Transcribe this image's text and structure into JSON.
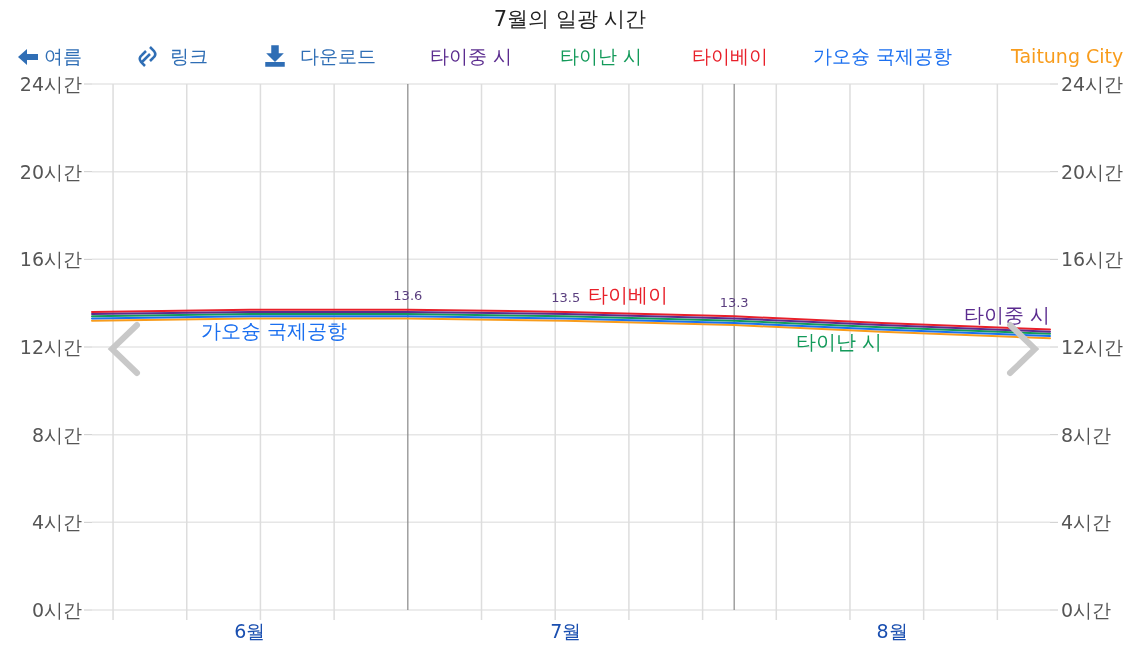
{
  "chart_data": {
    "type": "line",
    "title": "7월의 일광 시간",
    "x": [
      "--06-01",
      "--06-16",
      "--07-01",
      "--07-16",
      "--08-01",
      "--08-15",
      "--08-31"
    ],
    "xlim": [
      "--06-01",
      "--08-31"
    ],
    "xticks": [
      {
        "value": "--06-03",
        "label": null
      },
      {
        "value": "--06-10",
        "label": null
      },
      {
        "value": "--06-16",
        "label": "6월"
      },
      {
        "value": "--06-17",
        "label": null
      },
      {
        "value": "--06-24",
        "label": null
      },
      {
        "value": "--07-08",
        "label": null
      },
      {
        "value": "--07-15",
        "label": null
      },
      {
        "value": "--07-16",
        "label": "7월"
      },
      {
        "value": "--07-22",
        "label": null
      },
      {
        "value": "--07-29",
        "label": null
      },
      {
        "value": "--08-05",
        "label": null
      },
      {
        "value": "--08-12",
        "label": null
      },
      {
        "value": "--08-16",
        "label": "8월"
      },
      {
        "value": "--08-19",
        "label": null
      },
      {
        "value": "--08-26",
        "label": null
      }
    ],
    "ylim": [
      0,
      24
    ],
    "yticks": [
      {
        "value": 0,
        "label": "0시간"
      },
      {
        "value": 4,
        "label": "4시간"
      },
      {
        "value": 8,
        "label": "8시간"
      },
      {
        "value": 12,
        "label": "12시간"
      },
      {
        "value": 16,
        "label": "16시간"
      },
      {
        "value": 20,
        "label": "20시간"
      },
      {
        "value": 24,
        "label": "24시간"
      }
    ],
    "y2lim": [
      0,
      24
    ],
    "y2ticks": [
      {
        "value": 0,
        "label": "0시간"
      },
      {
        "value": 4,
        "label": "4시간"
      },
      {
        "value": 8,
        "label": "8시간"
      },
      {
        "value": 12,
        "label": "12시간"
      },
      {
        "value": 16,
        "label": "16시간"
      },
      {
        "value": 20,
        "label": "20시간"
      },
      {
        "value": 24,
        "label": "24시간"
      }
    ],
    "series": [
      {
        "name": "타이중 시",
        "color": "#5b2c8f",
        "values": [
          13.5,
          13.6,
          13.6,
          13.5,
          13.3,
          13.0,
          12.7
        ]
      },
      {
        "name": "타이난 시",
        "color": "#139a5a",
        "values": [
          13.4,
          13.5,
          13.5,
          13.4,
          13.2,
          12.9,
          12.6
        ]
      },
      {
        "name": "타이베이",
        "color": "#e8202a",
        "values": [
          13.6,
          13.7,
          13.7,
          13.6,
          13.4,
          13.1,
          12.8
        ]
      },
      {
        "name": "가오슝 국제공항",
        "color": "#1a6ff0",
        "values": [
          13.3,
          13.4,
          13.4,
          13.3,
          13.1,
          12.8,
          12.5
        ]
      },
      {
        "name": "Taitung City",
        "color": "#f89c1c",
        "values": [
          13.2,
          13.3,
          13.3,
          13.2,
          13.0,
          12.7,
          12.4
        ]
      }
    ],
    "ref_lines": [
      {
        "axis": "x",
        "value": "--07-01",
        "color": "#888888"
      },
      {
        "axis": "x",
        "value": "--08-01",
        "color": "#888888"
      }
    ],
    "annotations": [
      "여름",
      "링크",
      "다운로드",
      {
        "text": "13.6",
        "x": "--07-01",
        "y": 13.6
      },
      {
        "text": "13.5",
        "x": "--07-16",
        "y": 13.5
      },
      {
        "text": "13.3",
        "x": "--08-01",
        "y": 13.3
      }
    ],
    "legend": "top",
    "grid": true
  }
}
